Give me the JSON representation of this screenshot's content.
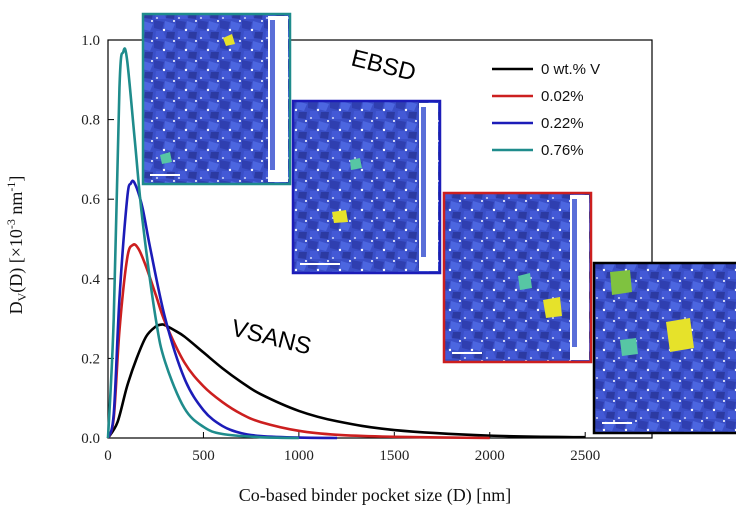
{
  "chart_data": {
    "type": "line",
    "xlabel": "Co-based binder pocket size (D) [nm]",
    "ylabel": "D_V(D) [×10^-3 nm^-1]",
    "xlim": [
      0,
      2850
    ],
    "ylim": [
      0,
      1.0
    ],
    "xticks": [
      "0",
      "500",
      "1000",
      "1500",
      "2000",
      "2500"
    ],
    "yticks": [
      "0.0",
      "0.2",
      "0.4",
      "0.6",
      "0.8",
      "1.0"
    ],
    "legend_position": "top-right",
    "series": [
      {
        "name": "0 wt.% V",
        "color": "#000000",
        "x": [
          0,
          50,
          100,
          150,
          200,
          250,
          280,
          300,
          350,
          400,
          500,
          600,
          700,
          800,
          1000,
          1200,
          1500,
          2000,
          2500
        ],
        "y": [
          0.0,
          0.04,
          0.13,
          0.2,
          0.255,
          0.28,
          0.285,
          0.283,
          0.27,
          0.255,
          0.215,
          0.175,
          0.14,
          0.11,
          0.068,
          0.042,
          0.02,
          0.006,
          0.002
        ]
      },
      {
        "name": "0.02%",
        "color": "#cc1f1f",
        "x": [
          0,
          30,
          60,
          100,
          130,
          160,
          200,
          250,
          300,
          400,
          500,
          600,
          700,
          800,
          1000,
          1200,
          1500,
          2000
        ],
        "y": [
          0.0,
          0.05,
          0.27,
          0.45,
          0.485,
          0.475,
          0.43,
          0.36,
          0.29,
          0.19,
          0.13,
          0.09,
          0.06,
          0.04,
          0.018,
          0.008,
          0.003,
          0.0
        ]
      },
      {
        "name": "0.22%",
        "color": "#1c1cb8",
        "x": [
          0,
          30,
          60,
          100,
          120,
          140,
          180,
          220,
          300,
          400,
          500,
          600,
          700,
          800,
          1000,
          1200
        ],
        "y": [
          0.0,
          0.06,
          0.35,
          0.6,
          0.64,
          0.64,
          0.58,
          0.48,
          0.3,
          0.15,
          0.07,
          0.03,
          0.012,
          0.005,
          0.001,
          0.0
        ]
      },
      {
        "name": "0.76%",
        "color": "#1f8c8c",
        "x": [
          0,
          30,
          60,
          80,
          100,
          140,
          180,
          250,
          300,
          400,
          500,
          600,
          800,
          1000
        ],
        "y": [
          0.0,
          0.3,
          0.88,
          0.97,
          0.95,
          0.75,
          0.55,
          0.3,
          0.19,
          0.075,
          0.028,
          0.01,
          0.002,
          0.0
        ]
      }
    ]
  },
  "annotations": {
    "ebsd": "EBSD",
    "vsans": "VSANS"
  },
  "insets": [
    {
      "name": "inset-0.76",
      "frame_color": "#1f8c8c"
    },
    {
      "name": "inset-0.22",
      "frame_color": "#1c1cb8"
    },
    {
      "name": "inset-0.02",
      "frame_color": "#cc1f1f"
    },
    {
      "name": "inset-0",
      "frame_color": "#000000"
    }
  ]
}
